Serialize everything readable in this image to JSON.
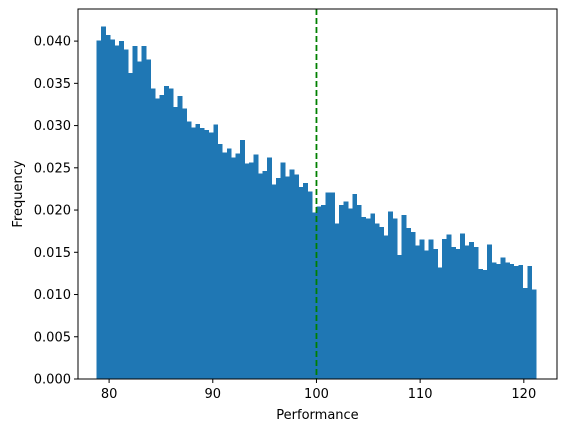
{
  "chart_data": {
    "type": "bar",
    "subtype": "histogram",
    "title": "",
    "xlabel": "Performance",
    "ylabel": "Frequency",
    "xlim": [
      77,
      123.2
    ],
    "ylim": [
      0,
      0.0438
    ],
    "xticks": [
      80,
      90,
      100,
      110,
      120
    ],
    "yticks": [
      0.0,
      0.005,
      0.01,
      0.015,
      0.02,
      0.025,
      0.03,
      0.035,
      0.04
    ],
    "ytick_format": "3dp",
    "grid": false,
    "bar_color": "#1f77b4",
    "bin_start": 78.8,
    "bin_end": 121.2,
    "frequencies": [
      0.0401,
      0.0417,
      0.0407,
      0.0402,
      0.0395,
      0.04,
      0.039,
      0.0362,
      0.0394,
      0.0376,
      0.0394,
      0.0378,
      0.0344,
      0.0332,
      0.0336,
      0.0347,
      0.0344,
      0.0322,
      0.0335,
      0.032,
      0.0305,
      0.0298,
      0.0302,
      0.0297,
      0.0295,
      0.0292,
      0.0301,
      0.0278,
      0.0268,
      0.0273,
      0.0262,
      0.0267,
      0.0283,
      0.0255,
      0.0256,
      0.0266,
      0.0243,
      0.0246,
      0.0262,
      0.023,
      0.0238,
      0.0256,
      0.024,
      0.0248,
      0.0242,
      0.0227,
      0.0232,
      0.0222,
      0.0197,
      0.0204,
      0.0206,
      0.0221,
      0.0221,
      0.0184,
      0.0206,
      0.021,
      0.0202,
      0.0219,
      0.0206,
      0.0192,
      0.019,
      0.0196,
      0.0184,
      0.018,
      0.017,
      0.0198,
      0.019,
      0.0147,
      0.0194,
      0.0179,
      0.0174,
      0.0158,
      0.0165,
      0.0152,
      0.0165,
      0.0154,
      0.0132,
      0.0166,
      0.0171,
      0.0156,
      0.0154,
      0.0172,
      0.0158,
      0.0162,
      0.0156,
      0.013,
      0.0129,
      0.0159,
      0.0138,
      0.0136,
      0.0144,
      0.0138,
      0.0136,
      0.0134,
      0.0135,
      0.0108,
      0.0134,
      0.0106
    ],
    "reference_line": {
      "x": 100,
      "color": "#008000",
      "style": "dashed"
    }
  }
}
